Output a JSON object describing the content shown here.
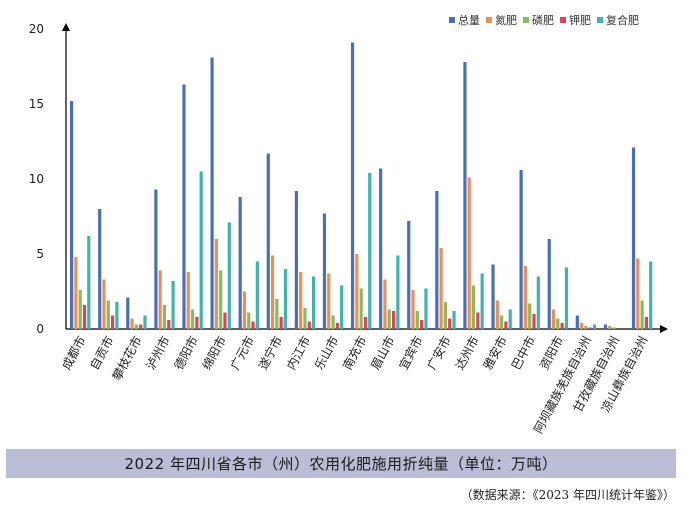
{
  "caption": "2022 年四川省各市（州）农用化肥施用折纯量（单位：万吨）",
  "source": "（数据来源：《2023 年四川统计年鉴》）",
  "chart_data": {
    "type": "bar",
    "title": "",
    "xlabel": "",
    "ylabel": "",
    "ylim": [
      0,
      20
    ],
    "yticks": [
      "0",
      "5",
      "10",
      "15",
      "20"
    ],
    "grid": false,
    "legend_position": "top-right",
    "categories": [
      "成都市",
      "自贡市",
      "攀枝花市",
      "泸州市",
      "德阳市",
      "绵阳市",
      "广元市",
      "遂宁市",
      "内江市",
      "乐山市",
      "南充市",
      "眉山市",
      "宜宾市",
      "广安市",
      "达州市",
      "雅安市",
      "巴中市",
      "资阳市",
      "阿坝藏族羌族自治州",
      "甘孜藏族自治州",
      "凉山彝族自治州"
    ],
    "series": [
      {
        "name": "总量",
        "color": "#4a6fb5",
        "values": [
          15.2,
          8.0,
          2.1,
          9.3,
          16.3,
          18.1,
          8.8,
          11.7,
          9.2,
          7.7,
          19.1,
          10.7,
          7.2,
          9.2,
          17.8,
          4.3,
          10.6,
          6.0,
          0.9,
          0.3,
          12.1
        ]
      },
      {
        "name": "氮肥",
        "color": "#e8905a",
        "values": [
          4.8,
          3.3,
          0.7,
          3.9,
          3.8,
          6.0,
          2.5,
          4.9,
          3.8,
          3.7,
          5.0,
          3.3,
          2.6,
          5.4,
          10.1,
          1.9,
          4.2,
          1.3,
          0.4,
          0.2,
          4.7
        ]
      },
      {
        "name": "磷肥",
        "color": "#8fb85a",
        "values": [
          2.6,
          1.9,
          0.3,
          1.6,
          1.3,
          3.9,
          1.1,
          2.0,
          1.4,
          0.9,
          2.7,
          1.3,
          1.2,
          1.8,
          2.9,
          0.9,
          1.7,
          0.7,
          0.2,
          0.1,
          1.9
        ]
      },
      {
        "name": "钾肥",
        "color": "#d9455a",
        "values": [
          1.6,
          0.9,
          0.3,
          0.6,
          0.8,
          1.1,
          0.5,
          0.8,
          0.5,
          0.4,
          0.8,
          1.2,
          0.6,
          0.7,
          1.1,
          0.5,
          1.0,
          0.4,
          0.1,
          0.0,
          0.8
        ]
      },
      {
        "name": "复合肥",
        "color": "#3fb3ad",
        "values": [
          6.2,
          1.8,
          0.9,
          3.2,
          10.5,
          7.1,
          4.5,
          4.0,
          3.5,
          2.9,
          10.4,
          4.9,
          2.7,
          1.2,
          3.7,
          1.3,
          3.5,
          4.1,
          0.3,
          0.0,
          4.5
        ]
      }
    ]
  }
}
